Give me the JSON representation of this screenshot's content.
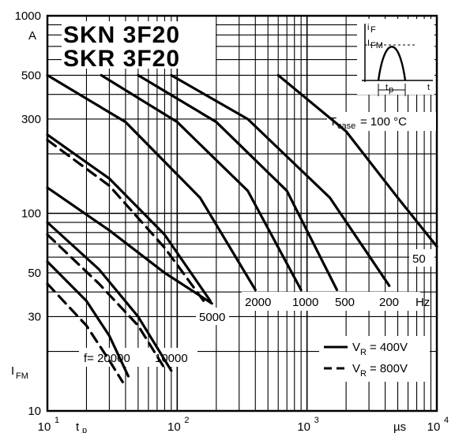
{
  "chart_data": {
    "type": "line",
    "title_lines": [
      "SKN 3F20",
      "SKR 3F20"
    ],
    "xscale": "log",
    "yscale": "log",
    "xlim": [
      10,
      10000
    ],
    "ylim": [
      10,
      1000
    ],
    "x_ticks": [
      {
        "base": "10",
        "exp": "1",
        "value": 10
      },
      {
        "base": "10",
        "exp": "2",
        "value": 100
      },
      {
        "base": "10",
        "exp": "3",
        "value": 1000
      },
      {
        "base": "10",
        "exp": "4",
        "value": 10000
      }
    ],
    "y_ticks": [
      {
        "label": "1000",
        "value": 1000
      },
      {
        "label": "500",
        "value": 500
      },
      {
        "label": "300",
        "value": 300
      },
      {
        "label": "100",
        "value": 100
      },
      {
        "label": "50",
        "value": 50
      },
      {
        "label": "30",
        "value": 30
      },
      {
        "label": "10",
        "value": 10
      }
    ],
    "y_unit": "A",
    "x_unit": "µs",
    "xlabel": "tp",
    "ylabel": "IFM",
    "annotation_tcase": {
      "main": "T",
      "sub": "case",
      "rest": "= 100 °C"
    },
    "legend": [
      {
        "style": "solid",
        "text": "V",
        "sub": "R",
        "rest": "= 400V"
      },
      {
        "style": "dashed",
        "text": "V",
        "sub": "R",
        "rest": "= 800V"
      }
    ],
    "freq_labels": {
      "f20000": "f= 20000",
      "f10000": "10000",
      "f5000": "5000",
      "f2000": "2000",
      "f1000": "1000",
      "f500": "500",
      "f200": "200",
      "hz": "Hz",
      "f50": "50"
    },
    "series": [
      {
        "name": "f= 20000",
        "style": "solid",
        "points": [
          [
            10,
            57
          ],
          [
            20,
            36
          ],
          [
            30,
            24
          ],
          [
            42,
            15
          ]
        ]
      },
      {
        "name": "f= 20000",
        "style": "dashed",
        "points": [
          [
            10,
            44
          ],
          [
            20,
            27
          ],
          [
            30,
            18
          ],
          [
            38,
            14
          ]
        ]
      },
      {
        "name": "10000",
        "style": "solid",
        "points": [
          [
            10,
            90
          ],
          [
            25,
            52
          ],
          [
            50,
            30
          ],
          [
            90,
            16
          ]
        ]
      },
      {
        "name": "10000",
        "style": "dashed",
        "points": [
          [
            10,
            78
          ],
          [
            25,
            44
          ],
          [
            50,
            27
          ],
          [
            82,
            16
          ]
        ]
      },
      {
        "name": "5000",
        "style": "solid",
        "points": [
          [
            10,
            135
          ],
          [
            30,
            82
          ],
          [
            80,
            50
          ],
          [
            185,
            35
          ]
        ]
      },
      {
        "name": "5000",
        "style": "dashed",
        "points": [
          [
            10,
            235
          ],
          [
            30,
            138
          ],
          [
            80,
            67
          ],
          [
            165,
            35
          ]
        ]
      },
      {
        "name": "5000",
        "style": "solid",
        "points": [
          [
            10,
            250
          ],
          [
            30,
            150
          ],
          [
            80,
            78
          ],
          [
            180,
            36
          ]
        ]
      },
      {
        "name": "2000",
        "style": "solid",
        "points": [
          [
            10,
            500
          ],
          [
            40,
            290
          ],
          [
            150,
            120
          ],
          [
            400,
            41
          ]
        ]
      },
      {
        "name": "1000",
        "style": "solid",
        "points": [
          [
            26,
            500
          ],
          [
            100,
            290
          ],
          [
            350,
            130
          ],
          [
            900,
            41
          ]
        ]
      },
      {
        "name": "500",
        "style": "solid",
        "points": [
          [
            50,
            500
          ],
          [
            200,
            290
          ],
          [
            700,
            130
          ],
          [
            1700,
            41
          ]
        ]
      },
      {
        "name": "200",
        "style": "solid",
        "points": [
          [
            90,
            500
          ],
          [
            350,
            300
          ],
          [
            1500,
            120
          ],
          [
            4300,
            43
          ]
        ]
      },
      {
        "name": "50",
        "style": "solid",
        "points": [
          [
            600,
            500
          ],
          [
            2000,
            260
          ],
          [
            5000,
            120
          ],
          [
            10000,
            68
          ]
        ]
      }
    ]
  }
}
